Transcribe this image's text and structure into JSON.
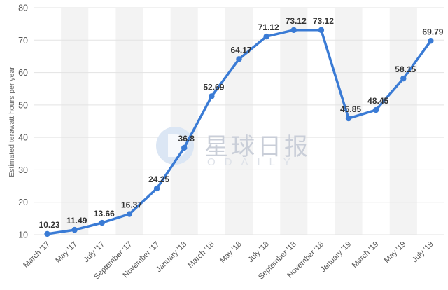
{
  "chart_data": {
    "type": "line",
    "ylabel": "Estimated terawatt hours per year",
    "xlabel": "",
    "ylim": [
      10,
      80
    ],
    "yticks": [
      10,
      20,
      30,
      40,
      50,
      60,
      70,
      80
    ],
    "grid": true,
    "categories": [
      "March '17",
      "May '17",
      "July '17",
      "September '17",
      "November '17",
      "January '18",
      "March '18",
      "May '18",
      "July '18",
      "September '18",
      "November '18",
      "January '19",
      "March '19",
      "May '19",
      "July '19"
    ],
    "values": [
      10.23,
      11.49,
      13.66,
      16.37,
      24.25,
      36.8,
      52.69,
      64.17,
      71.12,
      73.12,
      73.12,
      45.85,
      48.45,
      58.15,
      69.79
    ],
    "data_labels": [
      "10.23",
      "11.49",
      "13.66",
      "16.37",
      "24.25",
      "36.8",
      "52.69",
      "64.17",
      "71.12",
      "73.12",
      "73.12",
      "45.85",
      "48.45",
      "58.15",
      "69.79"
    ],
    "line_color": "#3a7bd5",
    "band_color": "#f3f3f3",
    "grid_color": "#e3e3e3"
  },
  "watermark": {
    "text": "星球日报",
    "subtext": "ODAILY",
    "logo_icon": "odaily-logo-icon",
    "logo_color": "#4a90d9"
  }
}
